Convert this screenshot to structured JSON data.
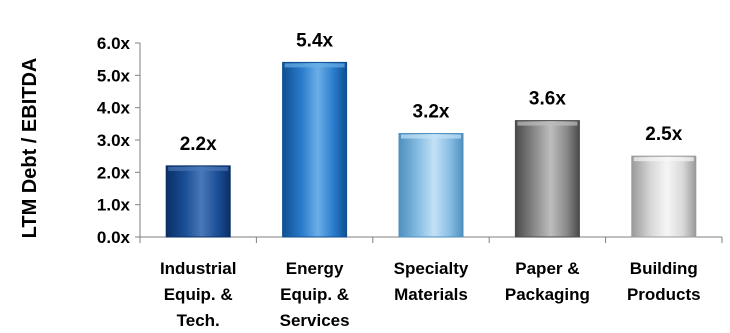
{
  "chart_data": {
    "type": "bar",
    "ylabel": "LTM Debt / EBITDA",
    "xlabel": "",
    "ylim": [
      0,
      6
    ],
    "yticks": [
      "0.0x",
      "1.0x",
      "2.0x",
      "3.0x",
      "4.0x",
      "5.0x",
      "6.0x"
    ],
    "categories": [
      [
        "Industrial",
        "Equip. &",
        "Tech."
      ],
      [
        "Energy",
        "Equip. &",
        "Services"
      ],
      [
        "Specialty",
        "Materials"
      ],
      [
        "Paper &",
        "Packaging"
      ],
      [
        "Building",
        "Products"
      ]
    ],
    "values": [
      2.2,
      5.4,
      3.2,
      3.6,
      2.5
    ],
    "data_labels": [
      "2.2x",
      "5.4x",
      "3.2x",
      "3.6x",
      "2.5x"
    ],
    "colors": [
      {
        "dark": "#0b2f66",
        "mid": "#1b4f96",
        "light": "#4a78b8"
      },
      {
        "dark": "#0d4f92",
        "mid": "#2a7ccc",
        "light": "#6aaee6"
      },
      {
        "dark": "#4f8fbf",
        "mid": "#86bde3",
        "light": "#c3e1f5"
      },
      {
        "dark": "#4a4a4a",
        "mid": "#8a8a8a",
        "light": "#bdbdbd"
      },
      {
        "dark": "#9a9a9a",
        "mid": "#d8d8d8",
        "light": "#f6f6f6"
      }
    ]
  }
}
